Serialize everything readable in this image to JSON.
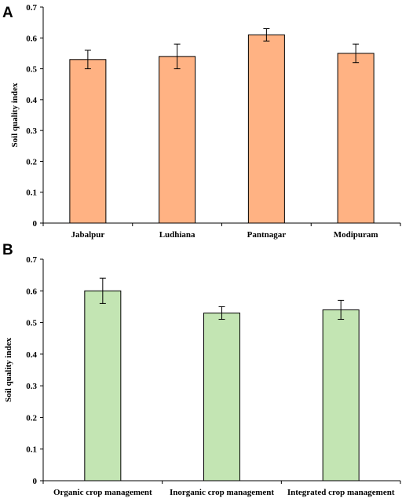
{
  "chart_data": [
    {
      "type": "bar",
      "panel_label": "A",
      "categories": [
        "Jabalpur",
        "Ludhiana",
        "Pantnagar",
        "Modipuram"
      ],
      "values": [
        0.53,
        0.54,
        0.61,
        0.55
      ],
      "error": [
        0.03,
        0.04,
        0.02,
        0.03
      ],
      "ylabel": "Soil quality index",
      "xlabel": "",
      "ylim": [
        0,
        0.7
      ],
      "yticks": [
        "0",
        "0.1",
        "0.2",
        "0.3",
        "0.4",
        "0.5",
        "0.6",
        "0.7"
      ],
      "bar_color": "#FFB283",
      "grid": false
    },
    {
      "type": "bar",
      "panel_label": "B",
      "categories": [
        "Organic crop management",
        "Inorganic crop management",
        "Integrated crop management"
      ],
      "values": [
        0.6,
        0.53,
        0.54
      ],
      "error": [
        0.04,
        0.02,
        0.03
      ],
      "ylabel": "Soil quality index",
      "xlabel": "",
      "ylim": [
        0,
        0.7
      ],
      "yticks": [
        "0",
        "0.1",
        "0.2",
        "0.3",
        "0.4",
        "0.5",
        "0.6",
        "0.7"
      ],
      "bar_color": "#C3E5B3",
      "grid": false
    }
  ]
}
